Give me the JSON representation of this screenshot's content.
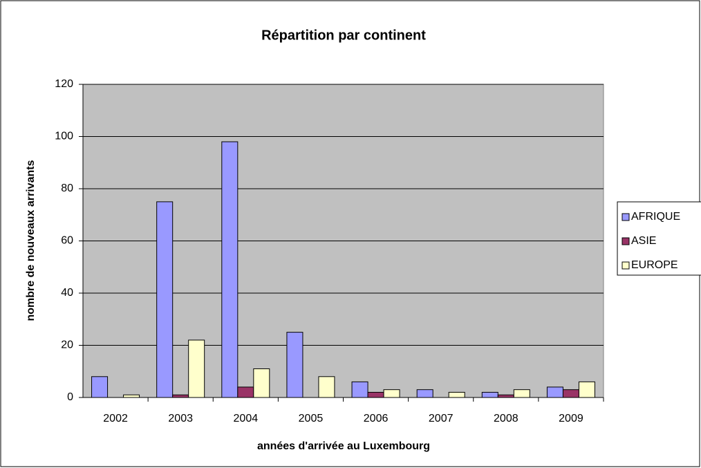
{
  "chart_data": {
    "type": "bar",
    "title": "Répartition par continent",
    "x_label": "années d'arrivée au Luxembourg",
    "y_label": "nombre de nouveaux arrivants",
    "categories": [
      "2002",
      "2003",
      "2004",
      "2005",
      "2006",
      "2007",
      "2008",
      "2009"
    ],
    "series": [
      {
        "name": "AFRIQUE",
        "color": "#9999ff",
        "values": [
          8,
          75,
          98,
          25,
          6,
          3,
          2,
          4
        ]
      },
      {
        "name": "ASIE",
        "color": "#993366",
        "values": [
          0,
          1,
          4,
          0,
          2,
          0,
          1,
          3
        ]
      },
      {
        "name": "EUROPE",
        "color": "#ffffcc",
        "values": [
          1,
          22,
          11,
          8,
          3,
          2,
          3,
          6
        ]
      }
    ],
    "ylim": [
      0,
      120
    ],
    "yticks": [
      0,
      20,
      40,
      60,
      80,
      100,
      120
    ],
    "grid": true,
    "legend": "right"
  }
}
